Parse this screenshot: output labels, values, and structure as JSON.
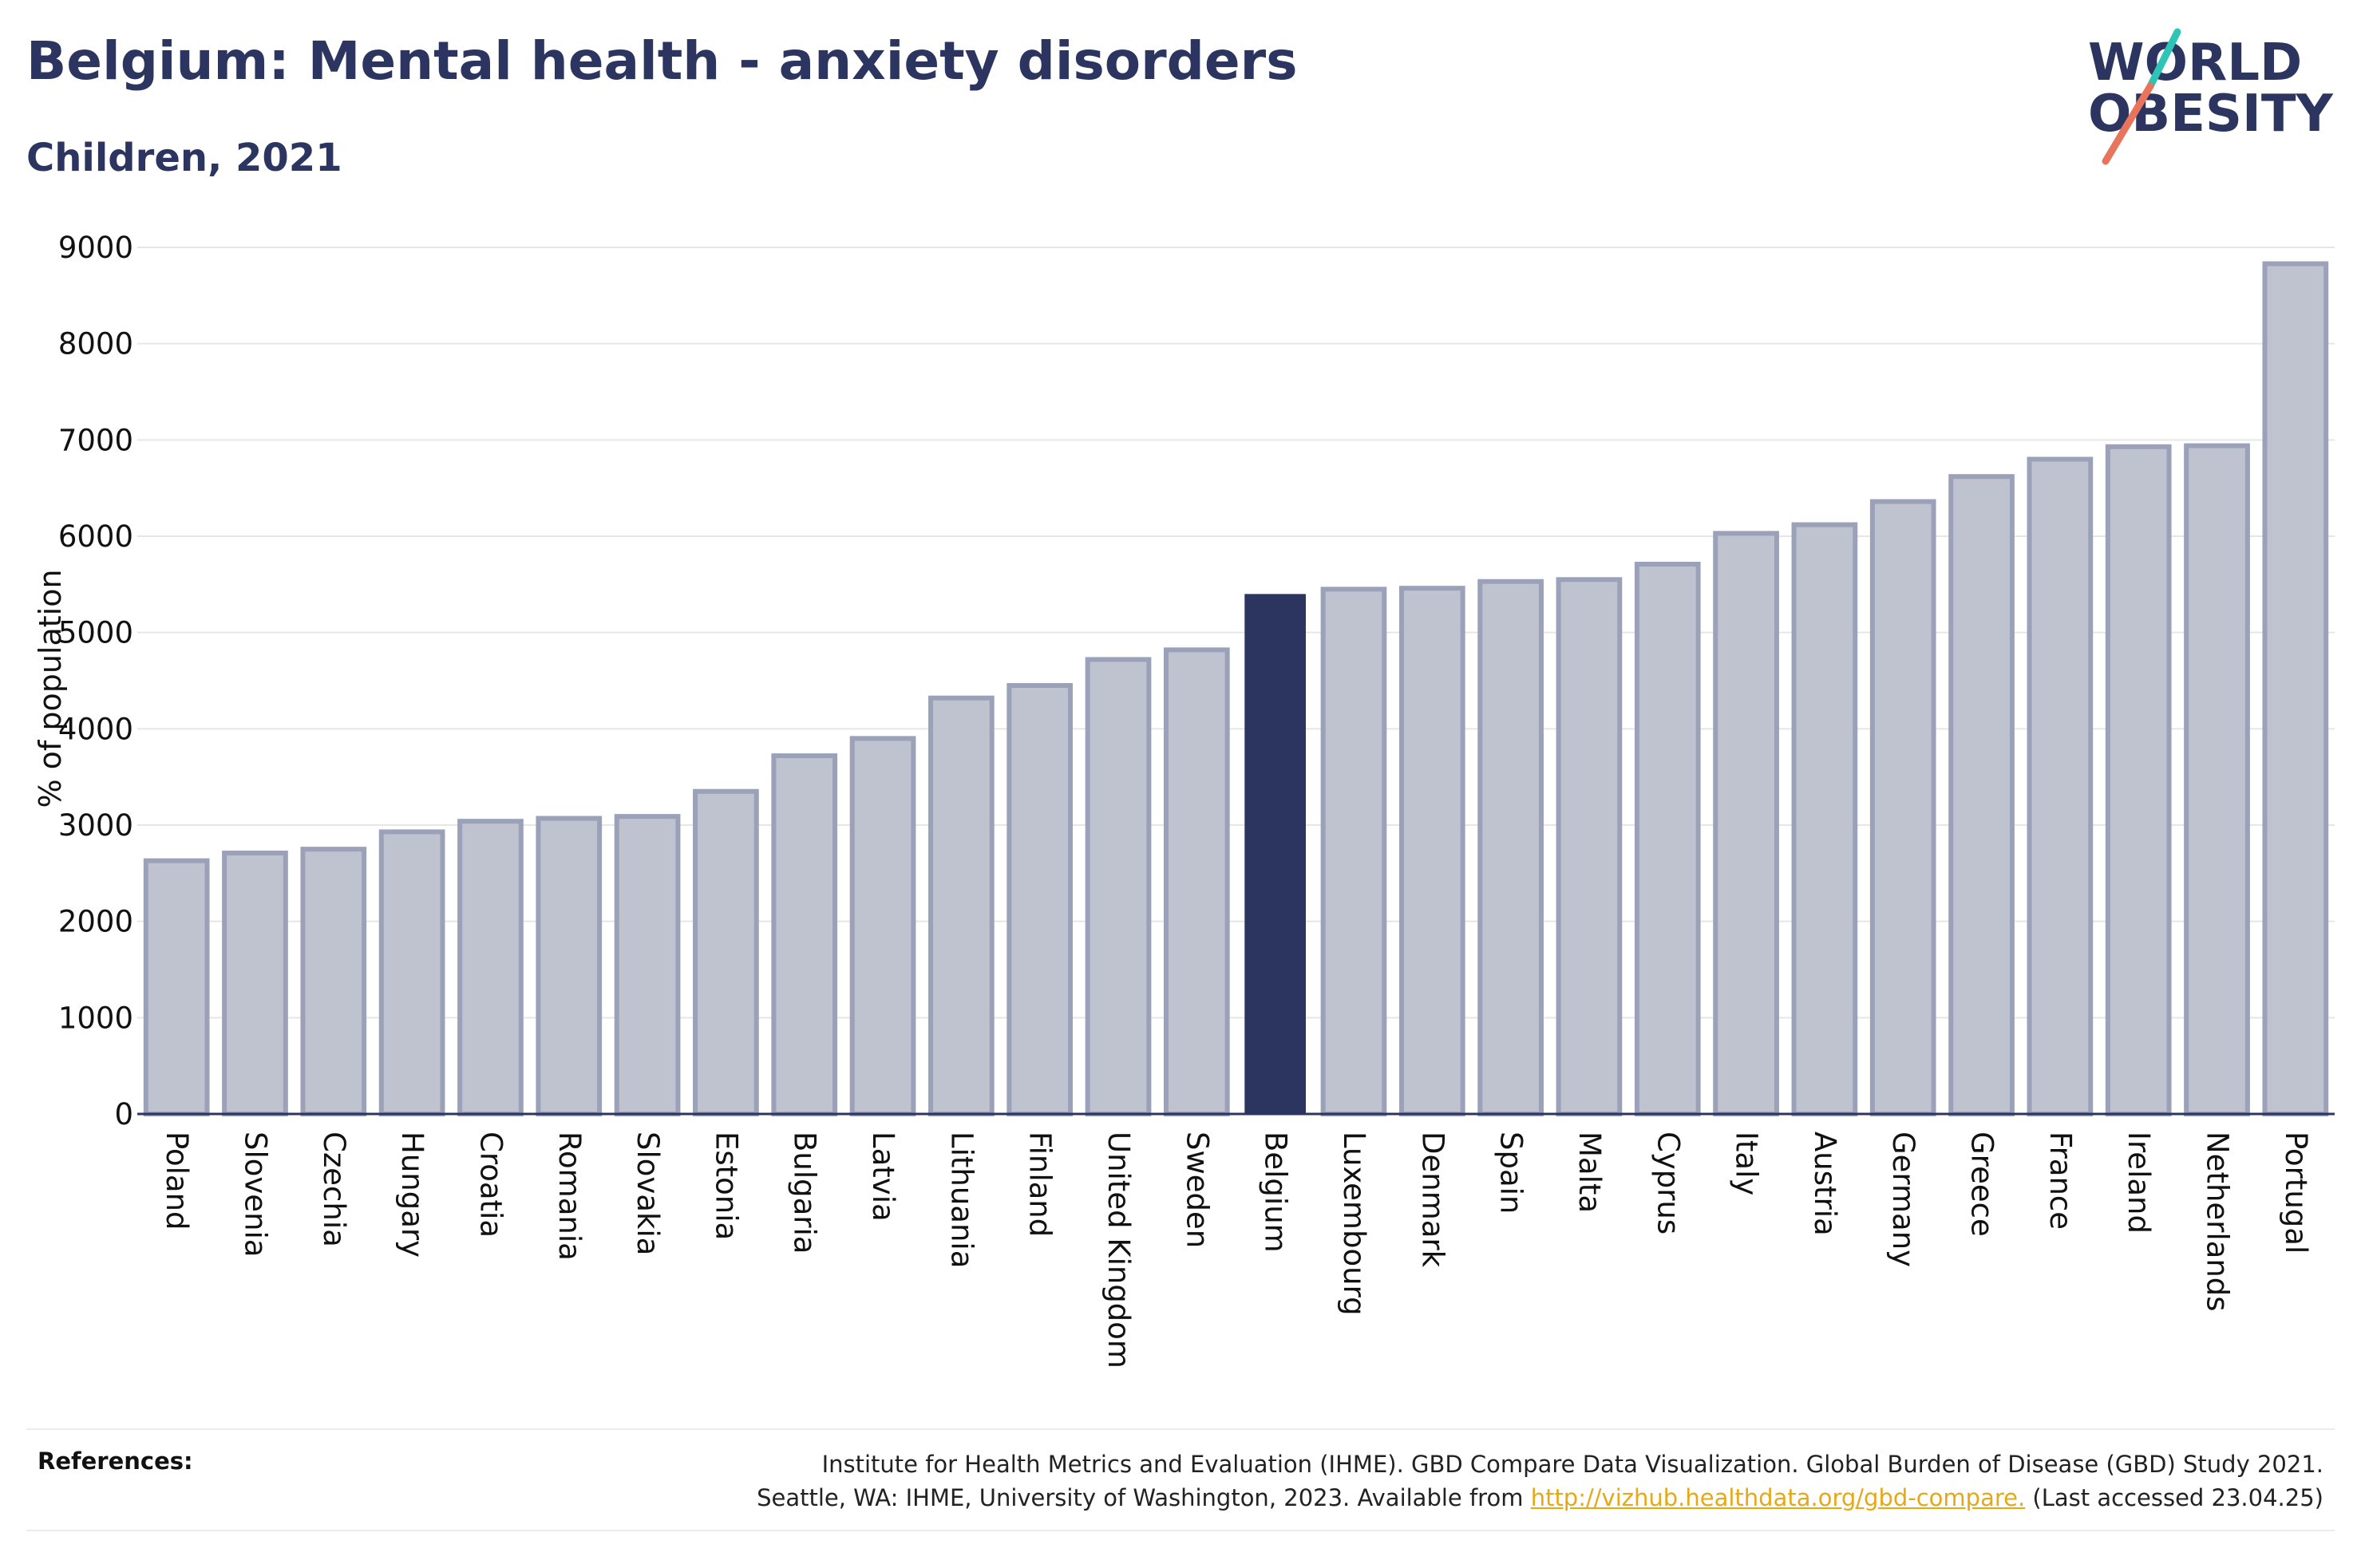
{
  "header": {
    "title": "Belgium: Mental health - anxiety disorders",
    "subtitle": "Children, 2021"
  },
  "logo": {
    "line1": "WORLD",
    "line2": "OBESITY"
  },
  "colors": {
    "highlight": "#2b355f",
    "bar_fill": "#bfc3d0",
    "bar_stroke": "#9aa1b8",
    "accent_teal": "#2ec4b6",
    "accent_coral": "#e8745c"
  },
  "chart_data": {
    "type": "bar",
    "ylabel": "% of population",
    "xlabel": "",
    "ylim": [
      0,
      9000
    ],
    "yticks": [
      0,
      1000,
      2000,
      3000,
      4000,
      5000,
      6000,
      7000,
      8000,
      9000
    ],
    "grid": true,
    "highlight": "Belgium",
    "categories": [
      "Poland",
      "Slovenia",
      "Czechia",
      "Hungary",
      "Croatia",
      "Romania",
      "Slovakia",
      "Estonia",
      "Bulgaria",
      "Latvia",
      "Lithuania",
      "Finland",
      "United Kingdom",
      "Sweden",
      "Belgium",
      "Luxembourg",
      "Denmark",
      "Spain",
      "Malta",
      "Cyprus",
      "Italy",
      "Austria",
      "Germany",
      "Greece",
      "France",
      "Ireland",
      "Netherlands",
      "Portugal"
    ],
    "values": [
      2630,
      2710,
      2750,
      2930,
      3040,
      3070,
      3090,
      3350,
      3720,
      3900,
      4320,
      4450,
      4720,
      4820,
      5400,
      5450,
      5460,
      5530,
      5550,
      5710,
      6030,
      6120,
      6360,
      6620,
      6800,
      6930,
      6940,
      8830
    ]
  },
  "references": {
    "label": "References:",
    "line1": "Institute for Health Metrics and Evaluation (IHME). GBD Compare Data Visualization. Global Burden of Disease (GBD) Study 2021.",
    "line2_prefix": "Seattle, WA: IHME, University of Washington, 2023. Available from ",
    "link": "http://vizhub.healthdata.org/gbd-compare.",
    "line2_suffix": " (Last accessed 23.04.25)"
  }
}
